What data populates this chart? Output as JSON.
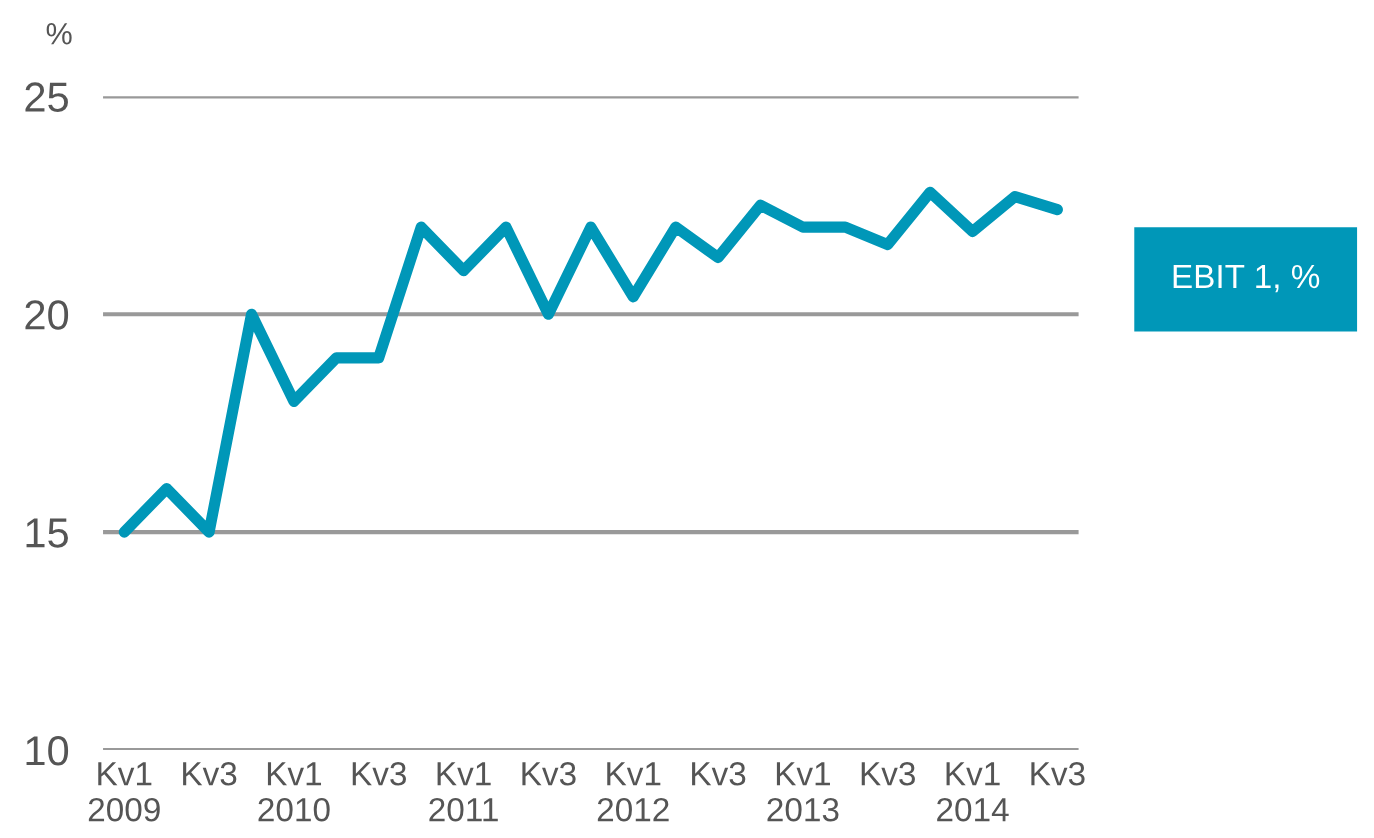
{
  "chart_data": {
    "type": "line",
    "ylabel": "%",
    "categories": [
      "Kv1\n2009",
      null,
      "Kv3",
      null,
      "Kv1\n2010",
      null,
      "Kv3",
      null,
      "Kv1\n2011",
      null,
      "Kv3",
      null,
      "Kv1\n2012",
      null,
      "Kv3",
      null,
      "Kv1\n2013",
      null,
      "Kv3",
      null,
      "Kv1\n2014",
      null,
      "Kv3"
    ],
    "series": [
      {
        "name": "EBIT 1, %",
        "color": "#0097b8",
        "values": [
          15,
          16,
          15,
          20,
          18,
          19,
          19,
          22,
          21,
          22,
          20,
          22,
          20.4,
          22,
          21.3,
          22.5,
          22,
          22,
          21.6,
          22.8,
          21.9,
          22.7,
          22.4
        ]
      }
    ],
    "ylim": [
      10,
      25
    ],
    "yticks": [
      10,
      15,
      20,
      25
    ],
    "grid": "y",
    "legend": "right",
    "marker": "none",
    "line_style": "solid"
  }
}
